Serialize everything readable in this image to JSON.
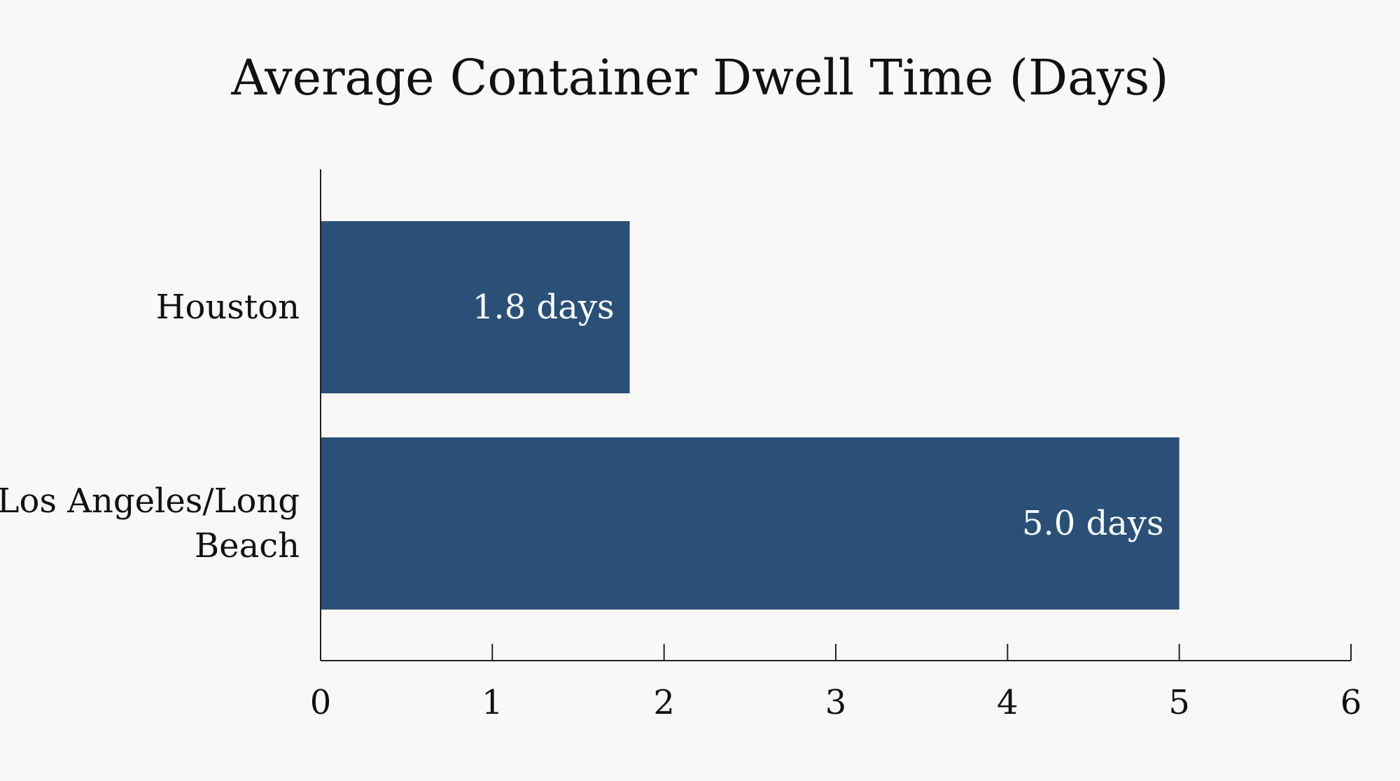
{
  "chart_data": {
    "type": "bar",
    "orientation": "horizontal",
    "title": "Average Container Dwell Time (Days)",
    "categories": [
      "Houston",
      "Los Angeles/Long Beach"
    ],
    "category_label_lines": [
      [
        "Houston"
      ],
      [
        "Los Angeles/Long",
        "Beach"
      ]
    ],
    "values": [
      1.8,
      5.0
    ],
    "data_labels": [
      "1.8 days",
      "5.0 days"
    ],
    "xlim": [
      0,
      6
    ],
    "xticks": [
      0,
      1,
      2,
      3,
      4,
      5,
      6
    ],
    "xtick_labels": [
      "0",
      "1",
      "2",
      "3",
      "4",
      "5",
      "6"
    ],
    "grid": false,
    "bar_color": "#2a5078"
  }
}
